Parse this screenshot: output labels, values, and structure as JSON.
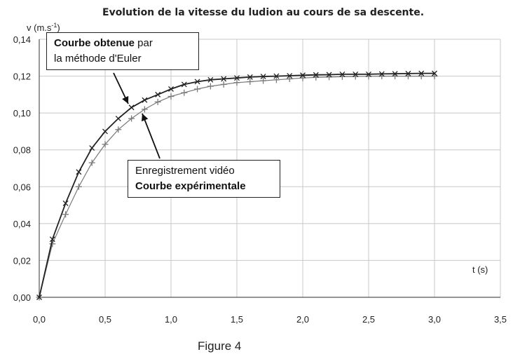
{
  "chart_data": {
    "type": "line",
    "title": "Evolution de la vitesse du ludion au cours de sa descente.",
    "xlabel": "t (s)",
    "ylabel": "v (m.s-1)",
    "xlim": [
      0,
      3.5
    ],
    "ylim": [
      0,
      0.14
    ],
    "x_ticks": [
      "0,0",
      "0,5",
      "1,0",
      "1,5",
      "2,0",
      "2,5",
      "3,0",
      "3,5"
    ],
    "y_ticks": [
      "0,00",
      "0,02",
      "0,04",
      "0,06",
      "0,08",
      "0,10",
      "0,12",
      "0,14"
    ],
    "grid": true,
    "series": [
      {
        "name": "Courbe obtenue par la méthode d'Euler",
        "marker": "x",
        "color": "#222222",
        "x": [
          0,
          0.1,
          0.2,
          0.3,
          0.4,
          0.5,
          0.6,
          0.7,
          0.8,
          0.9,
          1.0,
          1.1,
          1.2,
          1.3,
          1.4,
          1.5,
          1.6,
          1.7,
          1.8,
          1.9,
          2.0,
          2.1,
          2.2,
          2.3,
          2.4,
          2.5,
          2.6,
          2.7,
          2.8,
          2.9,
          3.0
        ],
        "y": [
          0,
          0.0315,
          0.051,
          0.068,
          0.081,
          0.09,
          0.097,
          0.103,
          0.107,
          0.11,
          0.113,
          0.1155,
          0.117,
          0.118,
          0.1185,
          0.119,
          0.1195,
          0.1198,
          0.12,
          0.1202,
          0.1205,
          0.1207,
          0.1208,
          0.121,
          0.121,
          0.121,
          0.1212,
          0.1213,
          0.1214,
          0.1215,
          0.1215
        ]
      },
      {
        "name": "Enregistrement vidéo Courbe expérimentale",
        "marker": "+",
        "color": "#7a7a7a",
        "x": [
          0,
          0.1,
          0.2,
          0.3,
          0.4,
          0.5,
          0.6,
          0.7,
          0.8,
          0.9,
          1.0,
          1.1,
          1.2,
          1.3,
          1.4,
          1.5,
          1.6,
          1.7,
          1.8,
          1.9,
          2.0,
          2.1,
          2.2,
          2.3,
          2.4,
          2.5,
          2.6,
          2.7,
          2.8,
          2.9,
          3.0
        ],
        "y": [
          0,
          0.029,
          0.045,
          0.06,
          0.073,
          0.083,
          0.091,
          0.097,
          0.102,
          0.106,
          0.109,
          0.111,
          0.113,
          0.1145,
          0.1155,
          0.1165,
          0.117,
          0.1175,
          0.118,
          0.1185,
          0.119,
          0.1193,
          0.1195,
          0.1197,
          0.1198,
          0.1199,
          0.12,
          0.12,
          0.12,
          0.12,
          0.12
        ]
      }
    ]
  },
  "annotations": {
    "euler_bold": "Courbe obtenue",
    "euler_rest": " par",
    "euler_line2": "la méthode d'Euler",
    "video_line1": "Enregistrement vidéo",
    "video_line2": "Courbe expérimentale"
  },
  "figure_label": "Figure 4"
}
